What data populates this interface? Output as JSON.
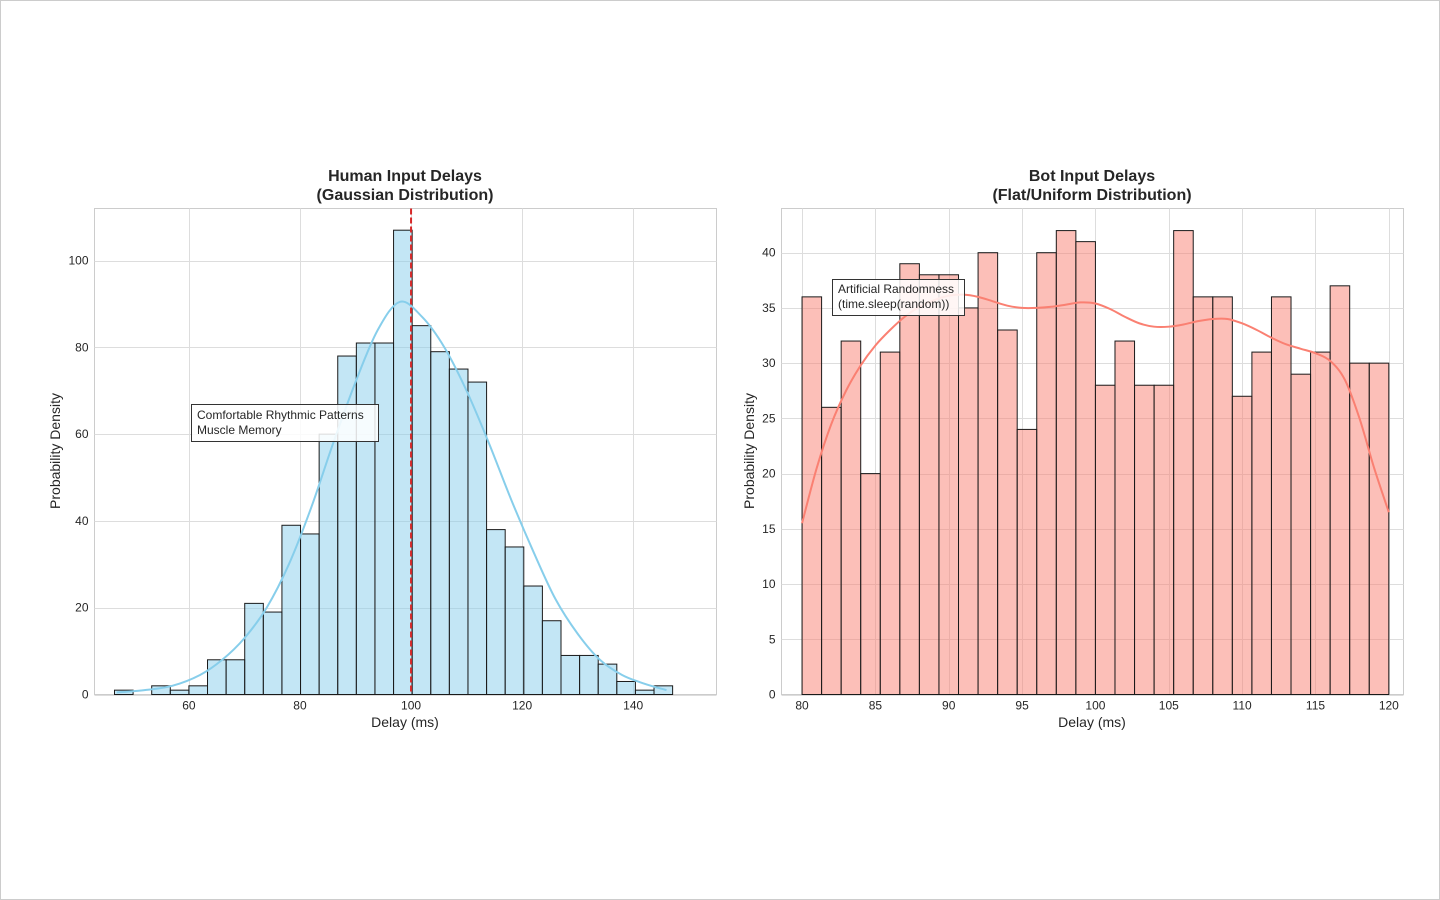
{
  "chart_data": [
    {
      "type": "bar",
      "subtype": "histogram_with_kde",
      "title": [
        "Human Input Delays",
        "(Gaussian Distribution)"
      ],
      "xlabel": "Delay (ms)",
      "ylabel": "Probability Density",
      "xlim": [
        43,
        155
      ],
      "ylim": [
        0,
        112
      ],
      "xticks": [
        60,
        80,
        100,
        120,
        140
      ],
      "yticks": [
        0,
        20,
        40,
        60,
        80,
        100
      ],
      "bin_start": 46.6,
      "bin_width": 3.35,
      "counts": [
        1,
        0,
        2,
        1,
        2,
        8,
        8,
        21,
        19,
        39,
        37,
        60,
        78,
        81,
        81,
        107,
        85,
        79,
        75,
        72,
        38,
        34,
        25,
        17,
        9,
        9,
        7,
        3,
        1,
        2
      ],
      "bar_color": "#87ceeb",
      "kde": {
        "color": "#87ceeb",
        "x": [
          47,
          52,
          57,
          62,
          66,
          70,
          74,
          78,
          82,
          86,
          90,
          94,
          98,
          102,
          106,
          110,
          114,
          118,
          122,
          126,
          130,
          134,
          138,
          142,
          146
        ],
        "y": [
          0.5,
          1,
          2,
          4.5,
          8,
          13,
          20,
          30,
          43,
          58,
          72,
          84,
          90.5,
          87,
          80,
          70,
          58,
          45,
          33,
          22,
          14,
          8,
          4.5,
          2.5,
          1
        ]
      },
      "mean_line": {
        "x": 100,
        "color": "#d62728",
        "style": "dashed"
      },
      "annotation": {
        "lines": [
          "Comfortable Rhythmic Patterns",
          "Muscle Memory"
        ],
        "x": 60,
        "y": 63
      },
      "grid": true
    },
    {
      "type": "bar",
      "subtype": "histogram_with_kde",
      "title": [
        "Bot Input Delays",
        "(Flat/Uniform Distribution)"
      ],
      "xlabel": "Delay (ms)",
      "ylabel": "Probability Density",
      "xlim": [
        78.6,
        121
      ],
      "ylim": [
        0,
        44
      ],
      "xticks": [
        80,
        85,
        90,
        95,
        100,
        105,
        110,
        115,
        120
      ],
      "yticks": [
        0,
        5,
        10,
        15,
        20,
        25,
        30,
        35,
        40
      ],
      "bin_start": 80,
      "bin_width": 1.3333,
      "counts": [
        36,
        26,
        32,
        20,
        31,
        39,
        38,
        38,
        35,
        40,
        33,
        24,
        40,
        42,
        41,
        28,
        32,
        28,
        28,
        42,
        36,
        36,
        27,
        31,
        36,
        29,
        31,
        37,
        30,
        30
      ],
      "bar_color": "#fa8072",
      "kde": {
        "color": "#fa8072",
        "x": [
          80,
          81,
          82,
          83,
          84,
          85,
          86,
          87,
          88,
          89,
          90,
          91,
          92,
          93,
          94,
          95,
          96,
          97,
          98,
          99,
          100,
          101,
          102,
          103,
          104,
          105,
          106,
          107,
          108,
          109,
          110,
          111,
          112,
          113,
          114,
          115,
          116,
          117,
          118,
          119,
          120
        ],
        "y": [
          15.5,
          20.5,
          24.5,
          27.5,
          29.8,
          31.6,
          33,
          34.2,
          35.1,
          35.7,
          36.1,
          36.2,
          36,
          35.6,
          35.2,
          35,
          35,
          35.1,
          35.3,
          35.5,
          35.4,
          34.9,
          34.2,
          33.6,
          33.3,
          33.3,
          33.5,
          33.8,
          34,
          34,
          33.6,
          33,
          32.3,
          31.7,
          31.3,
          30.9,
          30.2,
          28.5,
          25,
          20.5,
          16.5
        ]
      },
      "annotation": {
        "lines": [
          "Artificial Randomness",
          "(time.sleep(random))"
        ],
        "x": 81,
        "y": 37
      },
      "grid": true
    }
  ]
}
